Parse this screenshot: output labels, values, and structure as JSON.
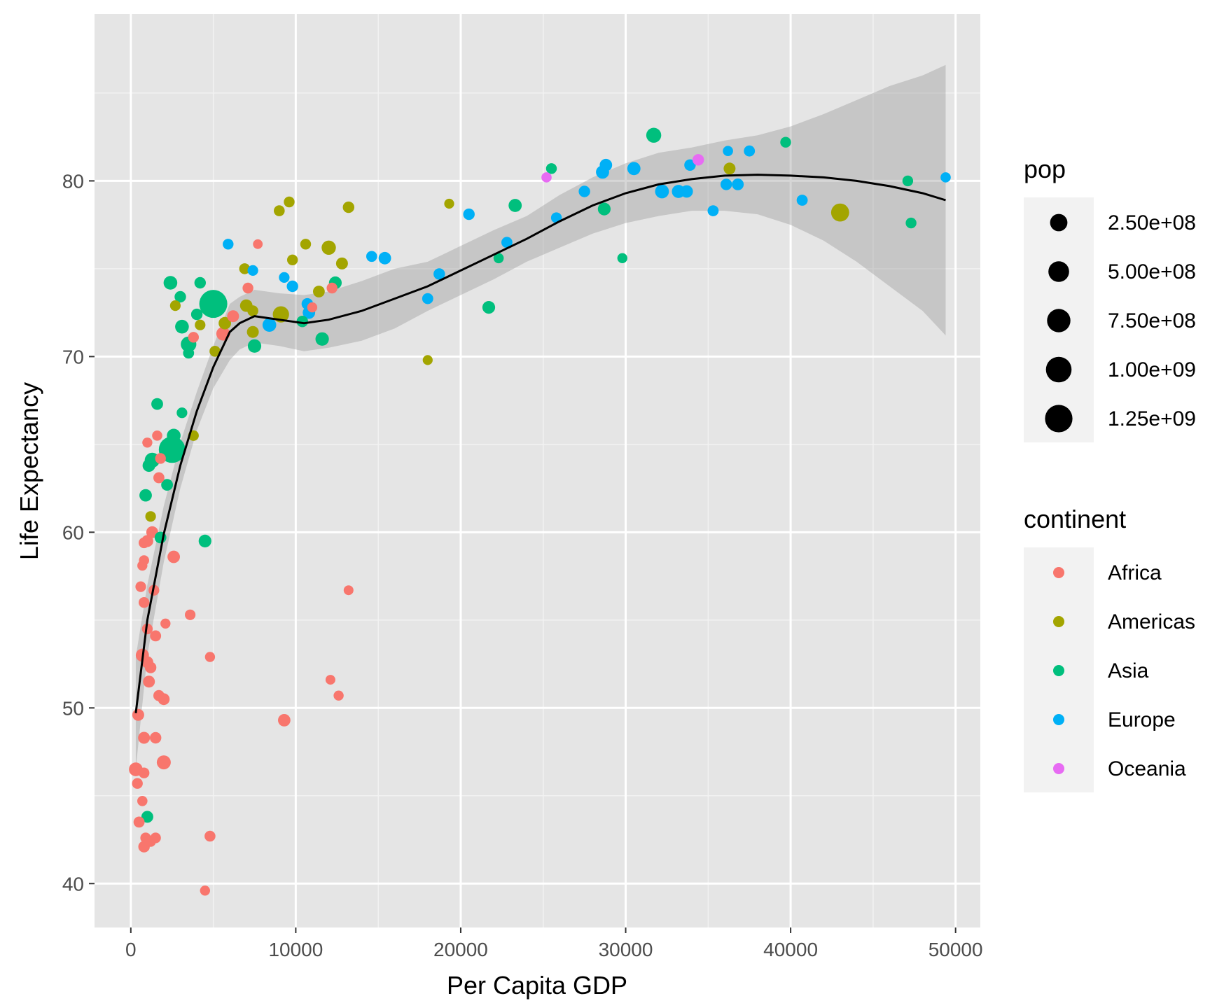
{
  "chart_data": {
    "type": "scatter",
    "title": "",
    "xlabel": "Per Capita GDP",
    "ylabel": "Life Expectancy",
    "xlim": [
      -2200,
      51500
    ],
    "ylim": [
      37.5,
      89.5
    ],
    "x_ticks": [
      0,
      10000,
      20000,
      30000,
      40000,
      50000
    ],
    "x_tick_labels": [
      "0",
      "10000",
      "20000",
      "30000",
      "40000",
      "50000"
    ],
    "y_ticks": [
      40,
      50,
      60,
      70,
      80
    ],
    "y_tick_labels": [
      "40",
      "50",
      "60",
      "70",
      "80"
    ],
    "grid": true,
    "background": "#e5e5e5",
    "legend_placement": "right",
    "size_legend": {
      "title": "pop",
      "values": [
        250000000,
        500000000,
        750000000,
        1000000000,
        1250000000
      ],
      "labels": [
        "2.50e+08",
        "5.00e+08",
        "7.50e+08",
        "1.00e+09",
        "1.25e+09"
      ]
    },
    "color_legend": {
      "title": "continent",
      "entries": [
        {
          "label": "Africa",
          "color": "#F8766D"
        },
        {
          "label": "Americas",
          "color": "#A3A500"
        },
        {
          "label": "Asia",
          "color": "#00BF7D"
        },
        {
          "label": "Europe",
          "color": "#00B0F6"
        },
        {
          "label": "Oceania",
          "color": "#E76BF3"
        }
      ]
    },
    "series": [
      {
        "name": "Africa",
        "color": "#F8766D",
        "points": [
          [
            450,
            49.6,
            30000000
          ],
          [
            300,
            46.5,
            80000000
          ],
          [
            400,
            45.7,
            10000000
          ],
          [
            700,
            44.7,
            5000000
          ],
          [
            500,
            43.5,
            15000000
          ],
          [
            900,
            42.6,
            8000000
          ],
          [
            800,
            42.1,
            20000000
          ],
          [
            1200,
            42.4,
            10000000
          ],
          [
            1500,
            42.6,
            8000000
          ],
          [
            800,
            48.3,
            30000000
          ],
          [
            1500,
            48.3,
            20000000
          ],
          [
            2000,
            46.9,
            90000000
          ],
          [
            800,
            46.3,
            10000000
          ],
          [
            700,
            53.0,
            60000000
          ],
          [
            1000,
            52.6,
            30000000
          ],
          [
            1200,
            52.3,
            20000000
          ],
          [
            1100,
            51.5,
            30000000
          ],
          [
            1700,
            50.7,
            15000000
          ],
          [
            2000,
            50.5,
            25000000
          ],
          [
            1000,
            54.5,
            10000000
          ],
          [
            1500,
            54.1,
            15000000
          ],
          [
            2100,
            54.8,
            4000000
          ],
          [
            800,
            56.0,
            10000000
          ],
          [
            600,
            56.9,
            8000000
          ],
          [
            1400,
            56.7,
            10000000
          ],
          [
            700,
            58.1,
            4000000
          ],
          [
            800,
            58.4,
            5000000
          ],
          [
            2600,
            58.6,
            40000000
          ],
          [
            800,
            59.4,
            10000000
          ],
          [
            1000,
            59.5,
            30000000
          ],
          [
            1300,
            60.0,
            30000000
          ],
          [
            1700,
            63.1,
            15000000
          ],
          [
            1000,
            65.1,
            4000000
          ],
          [
            1600,
            65.5,
            5000000
          ],
          [
            1800,
            64.2,
            10000000
          ],
          [
            3600,
            55.3,
            8000000
          ],
          [
            4800,
            52.9,
            4000000
          ],
          [
            4500,
            39.6,
            4000000
          ],
          [
            4800,
            42.7,
            12000000
          ],
          [
            9300,
            49.3,
            40000000
          ],
          [
            12100,
            51.6,
            2000000
          ],
          [
            12600,
            50.7,
            4000000
          ],
          [
            13200,
            56.7,
            2000000
          ],
          [
            3800,
            71.1,
            10000000
          ],
          [
            5600,
            71.3,
            80000000
          ],
          [
            6200,
            72.3,
            30000000
          ],
          [
            7100,
            73.9,
            10000000
          ],
          [
            7700,
            76.4,
            1000000
          ],
          [
            12200,
            73.9,
            10000000
          ],
          [
            11000,
            72.8,
            4000000
          ]
        ]
      },
      {
        "name": "Americas",
        "color": "#A3A500",
        "points": [
          [
            1200,
            60.9,
            8000000
          ],
          [
            2700,
            72.9,
            8000000
          ],
          [
            3800,
            65.5,
            8000000
          ],
          [
            4200,
            71.8,
            8000000
          ],
          [
            5100,
            70.3,
            12000000
          ],
          [
            5700,
            71.9,
            40000000
          ],
          [
            6900,
            75.0,
            12000000
          ],
          [
            7000,
            72.9,
            40000000
          ],
          [
            7400,
            71.4,
            30000000
          ],
          [
            7400,
            72.6,
            12000000
          ],
          [
            9000,
            78.3,
            12000000
          ],
          [
            9100,
            72.4,
            190000000
          ],
          [
            9600,
            78.8,
            10000000
          ],
          [
            9800,
            75.5,
            10000000
          ],
          [
            10600,
            76.4,
            10000000
          ],
          [
            11400,
            73.7,
            25000000
          ],
          [
            12000,
            76.2,
            100000000
          ],
          [
            12800,
            75.3,
            30000000
          ],
          [
            13200,
            78.5,
            20000000
          ],
          [
            18000,
            69.8,
            3000000
          ],
          [
            19300,
            78.7,
            3000000
          ],
          [
            36300,
            80.7,
            30000000
          ],
          [
            43000,
            78.2,
            300000000
          ]
        ]
      },
      {
        "name": "Asia",
        "color": "#00BF7D",
        "points": [
          [
            1000,
            43.8,
            30000000
          ],
          [
            900,
            62.1,
            40000000
          ],
          [
            1100,
            63.8,
            50000000
          ],
          [
            1300,
            64.1,
            130000000
          ],
          [
            1600,
            67.3,
            25000000
          ],
          [
            1800,
            59.7,
            25000000
          ],
          [
            2200,
            62.7,
            25000000
          ],
          [
            2500,
            64.7,
            1110000000
          ],
          [
            2600,
            65.5,
            80000000
          ],
          [
            2400,
            74.2,
            80000000
          ],
          [
            3000,
            73.4,
            20000000
          ],
          [
            3100,
            71.7,
            80000000
          ],
          [
            3100,
            66.8,
            8000000
          ],
          [
            3500,
            70.2,
            15000000
          ],
          [
            3500,
            70.7,
            150000000
          ],
          [
            4000,
            72.4,
            20000000
          ],
          [
            4200,
            74.2,
            20000000
          ],
          [
            4500,
            59.5,
            50000000
          ],
          [
            5000,
            73.0,
            1320000000
          ],
          [
            7500,
            70.6,
            70000000
          ],
          [
            10400,
            72.0,
            20000000
          ],
          [
            11600,
            71.0,
            70000000
          ],
          [
            12400,
            74.2,
            50000000
          ],
          [
            21700,
            72.8,
            50000000
          ],
          [
            22300,
            75.6,
            5000000
          ],
          [
            23300,
            78.6,
            60000000
          ],
          [
            25500,
            80.7,
            10000000
          ],
          [
            28700,
            78.4,
            50000000
          ],
          [
            29800,
            75.6,
            4000000
          ],
          [
            31700,
            82.6,
            127000000
          ],
          [
            39700,
            82.2,
            10000000
          ],
          [
            47100,
            80.0,
            10000000
          ],
          [
            47300,
            77.6,
            10000000
          ]
        ]
      },
      {
        "name": "Europe",
        "color": "#00B0F6",
        "points": [
          [
            5900,
            76.4,
            10000000
          ],
          [
            7400,
            74.9,
            8000000
          ],
          [
            8400,
            71.8,
            80000000
          ],
          [
            9300,
            74.5,
            8000000
          ],
          [
            9800,
            74.0,
            20000000
          ],
          [
            10700,
            73.0,
            20000000
          ],
          [
            10800,
            72.5,
            40000000
          ],
          [
            14600,
            75.7,
            12000000
          ],
          [
            15400,
            75.6,
            40000000
          ],
          [
            18000,
            73.3,
            15000000
          ],
          [
            18700,
            74.7,
            20000000
          ],
          [
            20500,
            78.1,
            20000000
          ],
          [
            22800,
            76.5,
            15000000
          ],
          [
            25800,
            77.9,
            10000000
          ],
          [
            27500,
            79.4,
            20000000
          ],
          [
            28600,
            80.5,
            60000000
          ],
          [
            28800,
            80.9,
            40000000
          ],
          [
            30500,
            80.7,
            60000000
          ],
          [
            32200,
            79.4,
            82000000
          ],
          [
            33200,
            79.4,
            60000000
          ],
          [
            33700,
            79.4,
            40000000
          ],
          [
            33900,
            80.9,
            20000000
          ],
          [
            35300,
            78.3,
            15000000
          ],
          [
            36100,
            79.8,
            20000000
          ],
          [
            36200,
            81.7,
            5000000
          ],
          [
            36800,
            79.8,
            25000000
          ],
          [
            37500,
            81.7,
            15000000
          ],
          [
            40700,
            78.9,
            15000000
          ],
          [
            49400,
            80.2,
            5000000
          ]
        ]
      },
      {
        "name": "Oceania",
        "color": "#E76BF3",
        "points": [
          [
            25200,
            80.2,
            5000000
          ],
          [
            34400,
            81.2,
            20000000
          ]
        ]
      }
    ],
    "smooth_line": {
      "x": [
        300,
        1000,
        2000,
        3000,
        4000,
        5000,
        6000,
        6600,
        7500,
        9000,
        10500,
        12000,
        14000,
        16000,
        18000,
        20000,
        22000,
        24000,
        26000,
        28000,
        30000,
        32000,
        34000,
        36000,
        38000,
        40000,
        42000,
        44000,
        46000,
        48000,
        49400
      ],
      "y": [
        49.7,
        55.0,
        59.9,
        63.8,
        66.9,
        69.4,
        71.4,
        71.9,
        72.3,
        72.1,
        71.9,
        72.1,
        72.6,
        73.3,
        74.0,
        74.9,
        75.8,
        76.7,
        77.7,
        78.6,
        79.3,
        79.8,
        80.1,
        80.3,
        80.35,
        80.3,
        80.2,
        80.0,
        79.7,
        79.3,
        78.9
      ],
      "upper": [
        46.5,
        53.0,
        58.3,
        62.5,
        65.8,
        68.2,
        69.8,
        70.4,
        70.8,
        70.6,
        70.3,
        70.5,
        70.9,
        71.6,
        72.6,
        73.5,
        74.4,
        75.4,
        76.2,
        77.0,
        77.6,
        78.0,
        78.3,
        78.3,
        78.1,
        77.5,
        76.6,
        75.4,
        74.0,
        72.6,
        71.2
      ]
    }
  }
}
